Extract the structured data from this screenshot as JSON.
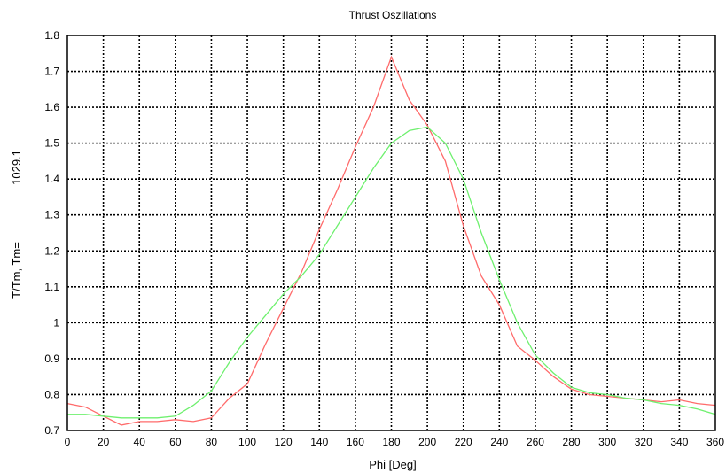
{
  "chart_data": {
    "type": "line",
    "title": "Thrust Oszillations",
    "xlabel": "Phi [Deg]",
    "ylabel": "T/Tm, Tm=",
    "ylabel_value": "1029.1",
    "xlim": [
      0,
      360
    ],
    "ylim": [
      0.7,
      1.8
    ],
    "xticks": [
      0,
      20,
      40,
      60,
      80,
      100,
      120,
      140,
      160,
      180,
      200,
      220,
      240,
      260,
      280,
      300,
      320,
      340,
      360
    ],
    "yticks": [
      0.7,
      0.8,
      0.9,
      1,
      1.1,
      1.2,
      1.3,
      1.4,
      1.5,
      1.6,
      1.7,
      1.8
    ],
    "xtick_labels": [
      "0",
      "20",
      "40",
      "60",
      "80",
      "100",
      "120",
      "140",
      "160",
      "180",
      "200",
      "220",
      "240",
      "260",
      "280",
      "300",
      "320",
      "340",
      "360"
    ],
    "ytick_labels": [
      "0.7",
      "0.8",
      "0.9",
      "1",
      "1.1",
      "1.2",
      "1.3",
      "1.4",
      "1.5",
      "1.6",
      "1.7",
      "1.8"
    ],
    "grid": true,
    "series": [
      {
        "color": "#ff6b6b",
        "x": [
          0,
          10,
          20,
          30,
          40,
          50,
          60,
          70,
          80,
          90,
          100,
          110,
          120,
          130,
          140,
          150,
          160,
          170,
          180,
          190,
          200,
          210,
          220,
          230,
          240,
          250,
          260,
          270,
          280,
          290,
          300,
          310,
          320,
          330,
          340,
          350,
          360
        ],
        "y": [
          0.775,
          0.765,
          0.74,
          0.715,
          0.725,
          0.725,
          0.73,
          0.725,
          0.735,
          0.79,
          0.83,
          0.94,
          1.04,
          1.14,
          1.26,
          1.37,
          1.49,
          1.6,
          1.74,
          1.62,
          1.55,
          1.45,
          1.27,
          1.13,
          1.05,
          0.935,
          0.895,
          0.85,
          0.815,
          0.8,
          0.795,
          0.79,
          0.785,
          0.78,
          0.785,
          0.775,
          0.77
        ]
      },
      {
        "color": "#6ef06e",
        "x": [
          0,
          10,
          20,
          30,
          40,
          50,
          60,
          70,
          80,
          90,
          100,
          110,
          120,
          130,
          140,
          150,
          160,
          170,
          180,
          190,
          200,
          210,
          220,
          230,
          240,
          250,
          260,
          270,
          280,
          290,
          300,
          310,
          320,
          330,
          340,
          350,
          360
        ],
        "y": [
          0.745,
          0.745,
          0.74,
          0.735,
          0.735,
          0.735,
          0.74,
          0.77,
          0.81,
          0.89,
          0.96,
          1.02,
          1.08,
          1.13,
          1.19,
          1.27,
          1.35,
          1.43,
          1.5,
          1.535,
          1.545,
          1.5,
          1.4,
          1.25,
          1.12,
          1.0,
          0.91,
          0.86,
          0.82,
          0.805,
          0.8,
          0.79,
          0.785,
          0.775,
          0.77,
          0.76,
          0.745
        ]
      }
    ]
  }
}
